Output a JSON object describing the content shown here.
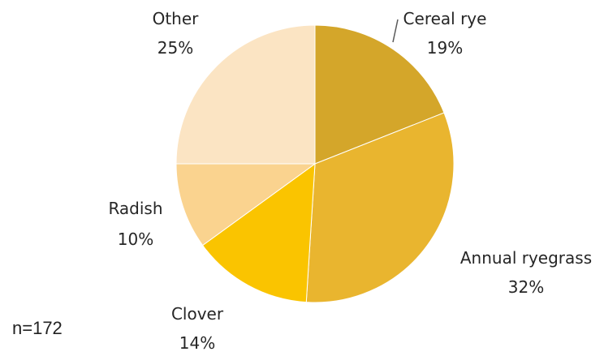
{
  "chart_data": {
    "type": "pie",
    "note": "n=172",
    "slices": [
      {
        "name": "Cereal rye",
        "pct_label": "19%",
        "value": 19,
        "color": "#D4A62A"
      },
      {
        "name": "Annual ryegrass",
        "pct_label": "32%",
        "value": 32,
        "color": "#E9B52F"
      },
      {
        "name": "Clover",
        "pct_label": "14%",
        "value": 14,
        "color": "#FAC400"
      },
      {
        "name": "Radish",
        "pct_label": "10%",
        "value": 10,
        "color": "#FAD38F"
      },
      {
        "name": "Other",
        "pct_label": "25%",
        "value": 25,
        "color": "#FBE4C3"
      }
    ]
  }
}
